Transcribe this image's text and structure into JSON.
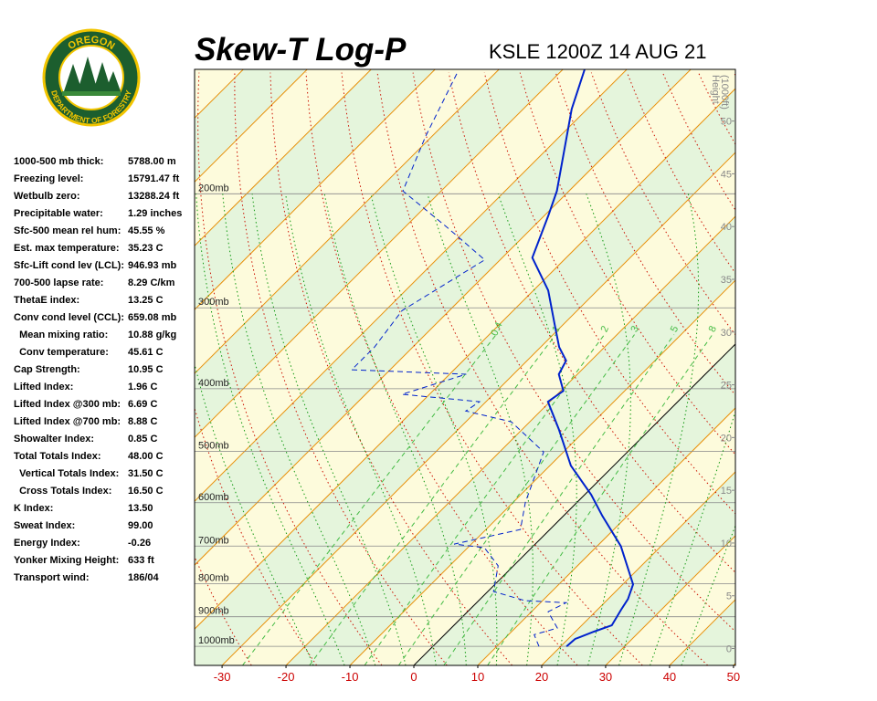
{
  "logo": {
    "top": "OREGON",
    "bottom": "DEPARTMENT OF FORESTRY"
  },
  "indices": {
    "rows": [
      [
        "1000-500 mb thick:",
        "5788.00 m"
      ],
      [
        "Freezing level:",
        "15791.47 ft"
      ],
      [
        "Wetbulb zero:",
        "13288.24 ft"
      ],
      [
        "Precipitable water:",
        "1.29 inches"
      ],
      [
        "Sfc-500 mean rel hum:",
        "45.55 %"
      ],
      [
        "Est. max temperature:",
        "35.23 C"
      ],
      [
        "Sfc-Lift cond lev (LCL):",
        "946.93 mb"
      ],
      [
        "700-500 lapse rate:",
        "8.29 C/km"
      ],
      [
        "ThetaE index:",
        "13.25 C"
      ],
      [
        "Conv cond level (CCL):",
        "659.08 mb"
      ],
      [
        "  Mean mixing ratio:",
        "10.88 g/kg"
      ],
      [
        "  Conv temperature:",
        "45.61 C"
      ],
      [
        "Cap Strength:",
        "10.95 C"
      ],
      [
        "Lifted Index:",
        "1.96 C"
      ],
      [
        "Lifted Index @300 mb:",
        "6.69 C"
      ],
      [
        "Lifted Index @700 mb:",
        "8.88 C"
      ],
      [
        "Showalter Index:",
        "0.85 C"
      ],
      [
        "Total Totals Index:",
        "48.00 C"
      ],
      [
        "  Vertical Totals Index:",
        "31.50 C"
      ],
      [
        "  Cross Totals Index:",
        "16.50 C"
      ],
      [
        "K Index:",
        "13.50"
      ],
      [
        "Sweat Index:",
        "99.00"
      ],
      [
        "Energy Index:",
        "-0.26"
      ],
      [
        "Yonker Mixing Height:",
        "633 ft"
      ],
      [
        "Transport wind:",
        "186/04"
      ]
    ]
  },
  "chart_data": {
    "type": "skew-t",
    "title": "Skew-T Log-P",
    "subtitle": "KSLE 1200Z 14 AUG 21",
    "xlim": [
      -34.3,
      50.3
    ],
    "xticks": [
      -30,
      -20,
      -10,
      0,
      10,
      20,
      30,
      40,
      50
    ],
    "ylim": [
      1070,
      128.5
    ],
    "log_y": true,
    "yticks": [
      {
        "value": 200,
        "label": "200mb"
      },
      {
        "value": 300,
        "label": "300mb"
      },
      {
        "value": 400,
        "label": "400mb"
      },
      {
        "value": 500,
        "label": "500mb"
      },
      {
        "value": 600,
        "label": "600mb"
      },
      {
        "value": 700,
        "label": "700mb"
      },
      {
        "value": 800,
        "label": "800mb"
      },
      {
        "value": 900,
        "label": "900mb"
      },
      {
        "value": 1000,
        "label": "1000mb"
      }
    ],
    "height_axis": {
      "label": [
        "Height",
        "(1000ft)"
      ],
      "lim": [
        -1.6,
        54.9
      ],
      "ticks": [
        0,
        5,
        10,
        15,
        20,
        25,
        30,
        35,
        40,
        45,
        50
      ]
    },
    "mixing_ratios": [
      0.4,
      1,
      2,
      3,
      5,
      8
    ],
    "series": [
      {
        "color": "#0022cc",
        "dash": false,
        "pressure": [
          1000,
          974,
          949,
          928,
          878,
          845,
          802,
          700,
          629,
          583,
          526,
          462,
          419,
          403,
          380,
          362,
          345,
          318,
          282,
          251,
          216,
          198,
          148,
          128.5
        ],
        "values": [
          20.9,
          21.1,
          22.9,
          24.7,
          23.7,
          23.1,
          21.6,
          13.7,
          6.1,
          1.0,
          -6.7,
          -14.3,
          -20.3,
          -19.6,
          -22.9,
          -23.9,
          -27.1,
          -31.4,
          -37.7,
          -45.3,
          -49.4,
          -51.9,
          -62.4,
          -66.6
        ]
      },
      {
        "color": "#0022cc",
        "dash": true,
        "pressure": [
          1000,
          959,
          937,
          884,
          856,
          850,
          823,
          751,
          704,
          695,
          660,
          599,
          501,
          450,
          433,
          419,
          408,
          380,
          374,
          345,
          303,
          253,
          226,
          198,
          163,
          130
        ],
        "values": [
          16.6,
          14.0,
          16.6,
          12.6,
          14.0,
          7.3,
          0.9,
          -2.4,
          -7.4,
          -12.7,
          -4.6,
          -8.1,
          -13.1,
          -22.9,
          -31.7,
          -31.0,
          -44.3,
          -37.4,
          -56.0,
          -56.0,
          -57.4,
          -52.4,
          -63.1,
          -76.0,
          -81,
          -86
        ]
      }
    ]
  }
}
